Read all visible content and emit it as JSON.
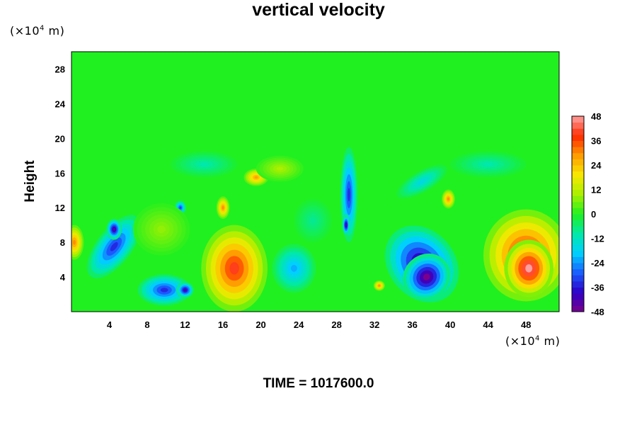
{
  "chart_data": {
    "type": "heatmap",
    "title": "vertical velocity",
    "ylabel": "Height",
    "xlabel": "",
    "x_unit_prefix": "(×10",
    "x_unit_exp": "4",
    "x_unit_suffix": " m)",
    "y_unit_prefix": "(×10",
    "y_unit_exp": "4",
    "y_unit_suffix": " m)",
    "xlim": [
      0,
      51.5
    ],
    "ylim": [
      0,
      30
    ],
    "x_ticks": [
      4,
      8,
      12,
      16,
      20,
      24,
      28,
      32,
      36,
      40,
      44,
      48
    ],
    "y_ticks": [
      4,
      8,
      12,
      16,
      20,
      24,
      28
    ],
    "color_range": [
      -48,
      48
    ],
    "colorbar_ticks": [
      48,
      36,
      24,
      12,
      0,
      -12,
      -24,
      -36,
      -48
    ],
    "colormap": [
      "#7a008c",
      "#2d00c8",
      "#1a5cff",
      "#00d0ff",
      "#00e9a8",
      "#20f020",
      "#a8f000",
      "#f8e800",
      "#ff9c00",
      "#ff2a00",
      "#ffa0a0"
    ],
    "features": [
      {
        "x": 4.5,
        "y": 7.5,
        "rx": 4.0,
        "ry": 2.0,
        "angle": -52,
        "value": -34
      },
      {
        "x": 4.5,
        "y": 9.5,
        "rx": 0.8,
        "ry": 1.2,
        "angle": 0,
        "value": -44
      },
      {
        "x": 9.8,
        "y": 2.5,
        "rx": 2.8,
        "ry": 1.8,
        "angle": 0,
        "value": -34
      },
      {
        "x": 12.0,
        "y": 2.5,
        "rx": 0.9,
        "ry": 0.9,
        "angle": 0,
        "value": -42
      },
      {
        "x": 11.5,
        "y": 12.0,
        "rx": 0.6,
        "ry": 0.8,
        "angle": 0,
        "value": -32
      },
      {
        "x": 9.5,
        "y": 9.5,
        "rx": 3.0,
        "ry": 3.0,
        "angle": 0,
        "value": 8
      },
      {
        "x": 17.2,
        "y": 5.0,
        "rx": 3.5,
        "ry": 5.0,
        "angle": 0,
        "value": 40
      },
      {
        "x": 16.0,
        "y": 12.0,
        "rx": 0.7,
        "ry": 1.3,
        "angle": 0,
        "value": 30
      },
      {
        "x": 19.5,
        "y": 15.5,
        "rx": 1.3,
        "ry": 1.0,
        "angle": 0,
        "value": 28
      },
      {
        "x": 23.5,
        "y": 5.0,
        "rx": 2.3,
        "ry": 2.8,
        "angle": 0,
        "value": -22
      },
      {
        "x": 29.3,
        "y": 13.5,
        "rx": 0.9,
        "ry": 5.5,
        "angle": 0,
        "value": -34
      },
      {
        "x": 29.0,
        "y": 10.0,
        "rx": 0.4,
        "ry": 1.2,
        "angle": 0,
        "value": -44
      },
      {
        "x": 25.5,
        "y": 10.5,
        "rx": 2.0,
        "ry": 2.5,
        "angle": 0,
        "value": -8
      },
      {
        "x": 32.5,
        "y": 3.0,
        "rx": 0.6,
        "ry": 0.6,
        "angle": 0,
        "value": 30
      },
      {
        "x": 37.0,
        "y": 5.5,
        "rx": 3.5,
        "ry": 4.8,
        "angle": -40,
        "value": -44
      },
      {
        "x": 37.5,
        "y": 4.0,
        "rx": 2.6,
        "ry": 2.6,
        "angle": -40,
        "value": -48
      },
      {
        "x": 39.8,
        "y": 13.0,
        "rx": 0.7,
        "ry": 1.1,
        "angle": 0,
        "value": 30
      },
      {
        "x": 37.0,
        "y": 15.0,
        "rx": 3.0,
        "ry": 1.2,
        "angle": -30,
        "value": -16
      },
      {
        "x": 48.0,
        "y": 6.5,
        "rx": 4.5,
        "ry": 5.3,
        "angle": 0,
        "value": 42
      },
      {
        "x": 48.3,
        "y": 5.0,
        "rx": 2.6,
        "ry": 3.3,
        "angle": 0,
        "value": 48
      },
      {
        "x": 0.3,
        "y": 8.0,
        "rx": 1.0,
        "ry": 2.0,
        "angle": 0,
        "value": 30
      },
      {
        "x": 14.0,
        "y": 17.0,
        "rx": 3.5,
        "ry": 1.5,
        "angle": 0,
        "value": -10
      },
      {
        "x": 22.0,
        "y": 16.5,
        "rx": 2.5,
        "ry": 1.5,
        "angle": 0,
        "value": 10
      },
      {
        "x": 44.0,
        "y": 17.0,
        "rx": 4.0,
        "ry": 1.5,
        "angle": 0,
        "value": -10
      }
    ]
  },
  "time_label": "TIME = 1017600.0"
}
